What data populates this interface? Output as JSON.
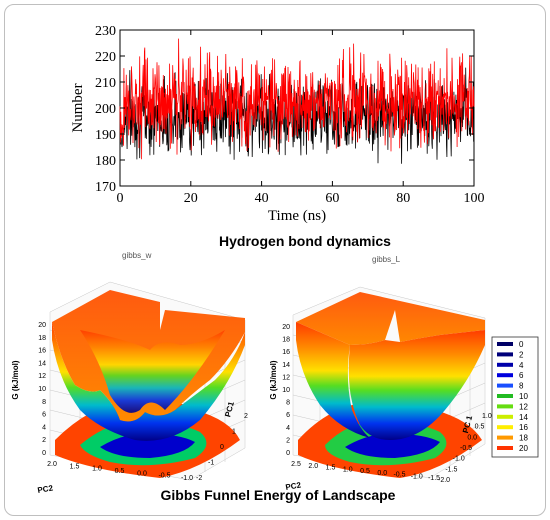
{
  "figure": {
    "top_caption": "Hydrogen bond dynamics",
    "bottom_caption": "Gibbs Funnel Energy of Landscape"
  },
  "chart_data": [
    {
      "type": "line",
      "xlabel": "Time (ns)",
      "ylabel": "Number",
      "xlim": [
        0,
        100
      ],
      "ylim": [
        170,
        230
      ],
      "x_ticks": [
        0,
        20,
        40,
        60,
        80,
        100
      ],
      "y_ticks": [
        170,
        180,
        190,
        200,
        210,
        220,
        230
      ],
      "grid": false,
      "series": [
        {
          "color": "#000000",
          "mean": 199,
          "range": [
            176,
            218
          ]
        },
        {
          "color": "#ff0000",
          "mean": 200,
          "range": [
            178,
            228
          ]
        }
      ]
    },
    {
      "type": "surface",
      "title": "gibbs_w",
      "zlabel": "G (kJ/mol)",
      "xlabel": "PC2",
      "ylabel": "PC1",
      "z_ticks": [
        0,
        2,
        4,
        6,
        8,
        10,
        12,
        14,
        16,
        18,
        20
      ],
      "x_ticks": [
        "2.0",
        "1.5",
        "1.0",
        "0.5",
        "0.0",
        "-0.5",
        "-1.0"
      ],
      "y_ticks": [
        "-2",
        "-1",
        "0",
        "1",
        "2"
      ]
    },
    {
      "type": "surface",
      "title": "gibbs_L",
      "zlabel": "G (kJ/mol)",
      "xlabel": "PC2",
      "ylabel": "PC 1",
      "z_ticks": [
        0,
        2,
        4,
        6,
        8,
        10,
        12,
        14,
        16,
        18,
        20
      ],
      "x_ticks": [
        "2.5",
        "2.0",
        "1.5",
        "1.0",
        "0.5",
        "0.0",
        "-0.5",
        "-1.0",
        "-1.5"
      ],
      "y_ticks": [
        "-2.0",
        "-1.5",
        "-1.0",
        "-0.5",
        "0.0",
        "0.5",
        "1.0"
      ]
    }
  ],
  "colorbar": {
    "levels": [
      "0",
      "2",
      "4",
      "6",
      "8",
      "10",
      "12",
      "14",
      "16",
      "18",
      "20"
    ],
    "colors": [
      "#000066",
      "#00007a",
      "#0000aa",
      "#0000dd",
      "#1a4fff",
      "#22bb22",
      "#66dd11",
      "#ccee00",
      "#ffee00",
      "#ff9900",
      "#ff3300"
    ]
  }
}
